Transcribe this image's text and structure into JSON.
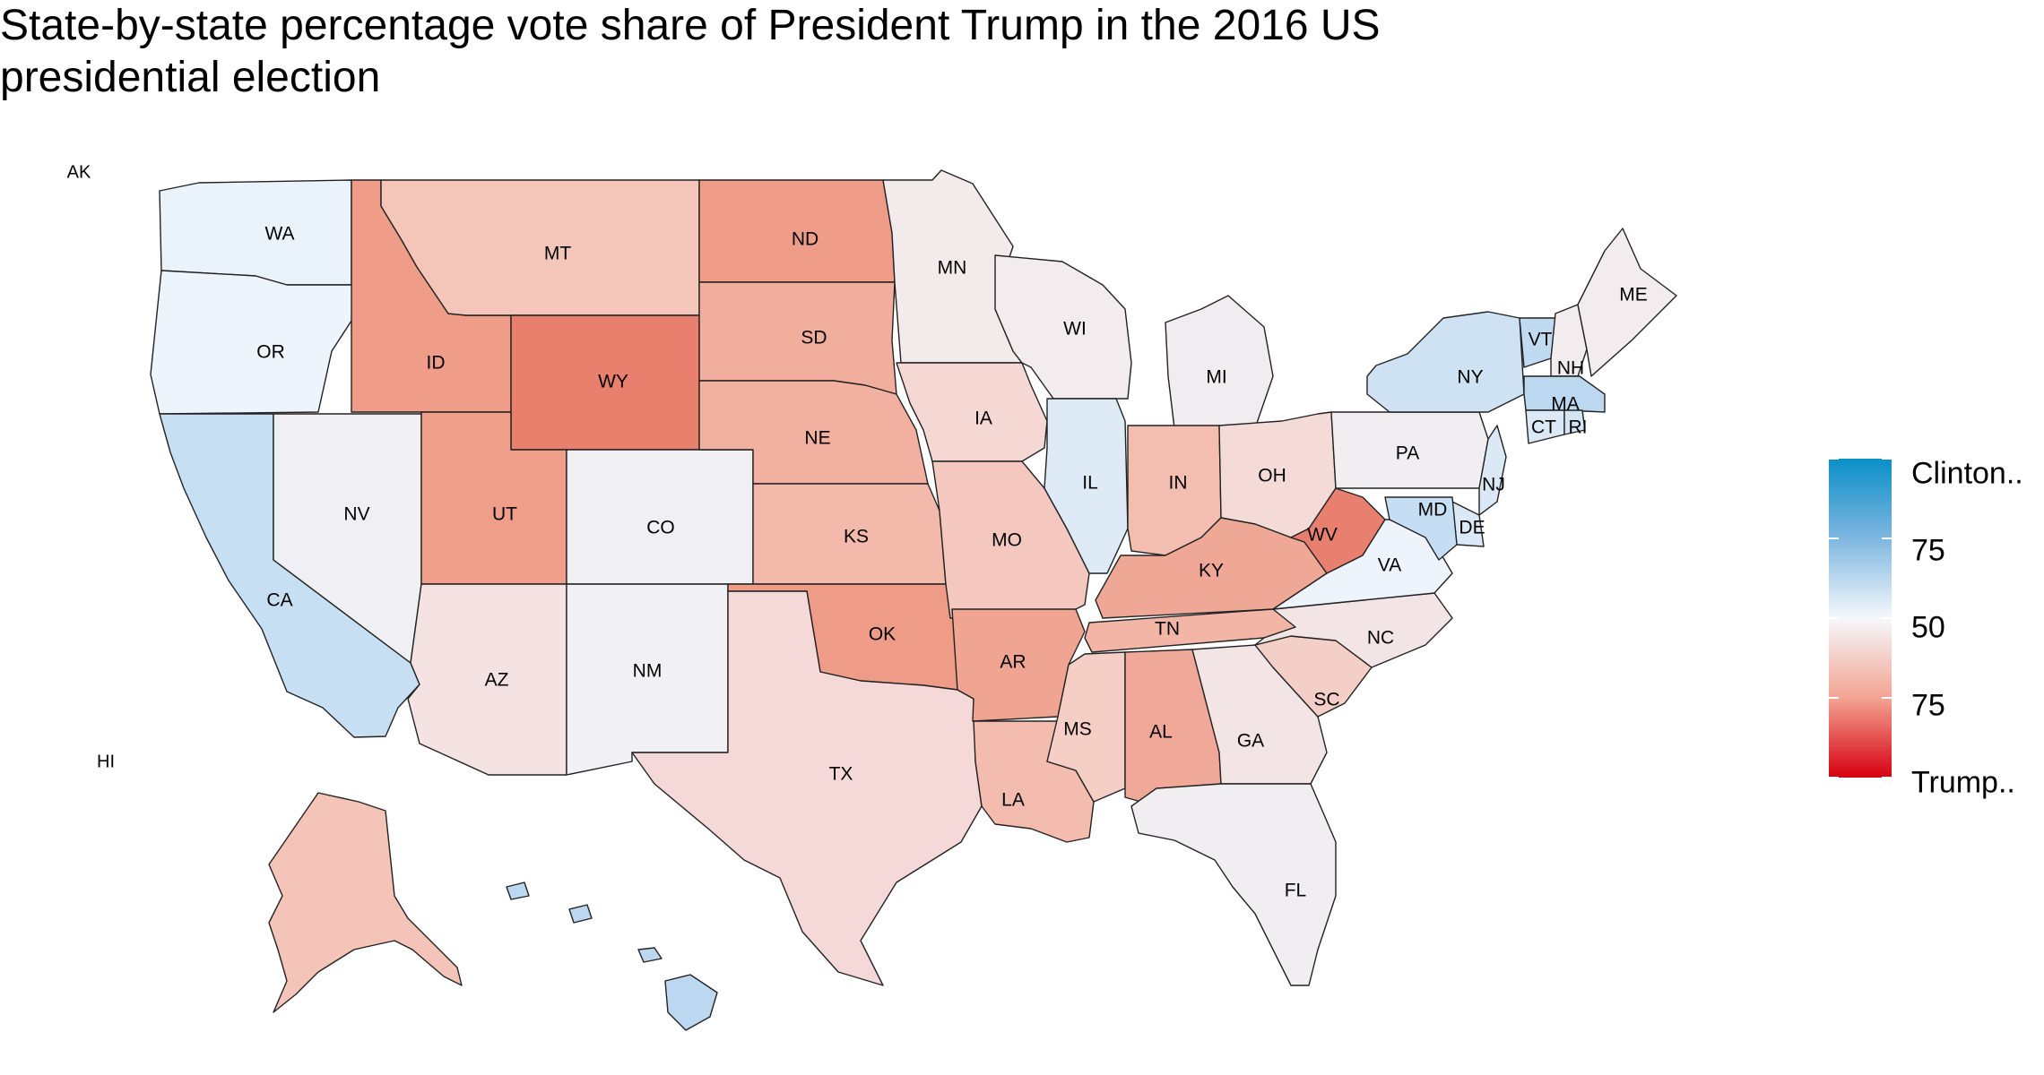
{
  "title": "State-by-state percentage vote share of President Trump in the 2016 US presidential election",
  "corner_labels": {
    "alaska": "AK",
    "hawaii": "HI"
  },
  "legend": {
    "labels": [
      "Clinton..",
      "75",
      "50",
      "75",
      "Trump.."
    ],
    "colors": {
      "clinton": "#0a8fc8",
      "neutral": "#f5f8fb",
      "trump": "#d6000f"
    }
  },
  "states": [
    {
      "abbr": "WA",
      "color": "#eaf2fa"
    },
    {
      "abbr": "OR",
      "color": "#edf4fb"
    },
    {
      "abbr": "CA",
      "color": "#c7dff3"
    },
    {
      "abbr": "ID",
      "color": "#ef9c88"
    },
    {
      "abbr": "NV",
      "color": "#f0f0f4"
    },
    {
      "abbr": "MT",
      "color": "#f4c6ba"
    },
    {
      "abbr": "WY",
      "color": "#e9806d"
    },
    {
      "abbr": "UT",
      "color": "#ef9e8a"
    },
    {
      "abbr": "AZ",
      "color": "#f5e2e2"
    },
    {
      "abbr": "CO",
      "color": "#f0f0f4"
    },
    {
      "abbr": "NM",
      "color": "#f1f0f4"
    },
    {
      "abbr": "ND",
      "color": "#ef9d89"
    },
    {
      "abbr": "SD",
      "color": "#f2ae9c"
    },
    {
      "abbr": "NE",
      "color": "#f2b0a0"
    },
    {
      "abbr": "KS",
      "color": "#f3b9aa"
    },
    {
      "abbr": "OK",
      "color": "#ee9b88"
    },
    {
      "abbr": "TX",
      "color": "#f5d9d9"
    },
    {
      "abbr": "MN",
      "color": "#f3eaec"
    },
    {
      "abbr": "IA",
      "color": "#f5d7d3"
    },
    {
      "abbr": "MO",
      "color": "#f4c8bf"
    },
    {
      "abbr": "AR",
      "color": "#efa592"
    },
    {
      "abbr": "LA",
      "color": "#f3bcae"
    },
    {
      "abbr": "WI",
      "color": "#f2ecee"
    },
    {
      "abbr": "IL",
      "color": "#deebf7"
    },
    {
      "abbr": "MI",
      "color": "#f1ecef"
    },
    {
      "abbr": "IN",
      "color": "#f3bdb0"
    },
    {
      "abbr": "OH",
      "color": "#f5dbd7"
    },
    {
      "abbr": "KY",
      "color": "#f0a896"
    },
    {
      "abbr": "TN",
      "color": "#f2b5a6"
    },
    {
      "abbr": "MS",
      "color": "#f5cfc6"
    },
    {
      "abbr": "AL",
      "color": "#f0a898"
    },
    {
      "abbr": "GA",
      "color": "#f3e4e6"
    },
    {
      "abbr": "FL",
      "color": "#f1eef2"
    },
    {
      "abbr": "SC",
      "color": "#f4cfc7"
    },
    {
      "abbr": "NC",
      "color": "#f3e4e6"
    },
    {
      "abbr": "WV",
      "color": "#e9806f"
    },
    {
      "abbr": "VA",
      "color": "#eef4fb"
    },
    {
      "abbr": "PA",
      "color": "#f1eef2"
    },
    {
      "abbr": "NY",
      "color": "#cfe2f4"
    },
    {
      "abbr": "VT",
      "color": "#c0dbf1"
    },
    {
      "abbr": "NH",
      "color": "#f2ecef"
    },
    {
      "abbr": "ME",
      "color": "#f2ecef"
    },
    {
      "abbr": "MA",
      "color": "#bcd8f0"
    },
    {
      "abbr": "CT",
      "color": "#dbe9f6"
    },
    {
      "abbr": "RI",
      "color": "#d3e4f5"
    },
    {
      "abbr": "NJ",
      "color": "#dbe9f6"
    },
    {
      "abbr": "DE",
      "color": "#dbe9f6"
    },
    {
      "abbr": "MD",
      "color": "#c6def3"
    },
    {
      "abbr": "AK",
      "color": "#f4c4b8"
    },
    {
      "abbr": "HI",
      "color": "#bcd8f0"
    }
  ]
}
